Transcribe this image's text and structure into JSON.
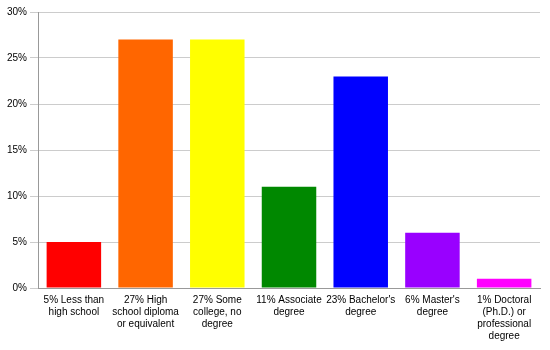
{
  "chart_data": {
    "type": "bar",
    "categories": [
      "5% Less than high school",
      "27% High school diploma or equivalent",
      "27% Some college, no degree",
      "11% Associate degree",
      "23% Bachelor's degree",
      "6% Master's degree",
      "1% Doctoral (Ph.D.) or professional degree"
    ],
    "values": [
      5,
      27,
      27,
      11,
      23,
      6,
      1
    ],
    "colors": [
      "#ff0000",
      "#ff6600",
      "#ffff00",
      "#008800",
      "#0000ff",
      "#9900ff",
      "#ff00ff"
    ],
    "ylim": [
      0,
      30
    ],
    "yticks": [
      {
        "value": 0,
        "label": "0%"
      },
      {
        "value": 5,
        "label": "5%"
      },
      {
        "value": 10,
        "label": "10%"
      },
      {
        "value": 15,
        "label": "15%"
      },
      {
        "value": 20,
        "label": "20%"
      },
      {
        "value": 25,
        "label": "25%"
      },
      {
        "value": 30,
        "label": "30%"
      }
    ],
    "grid": true
  }
}
